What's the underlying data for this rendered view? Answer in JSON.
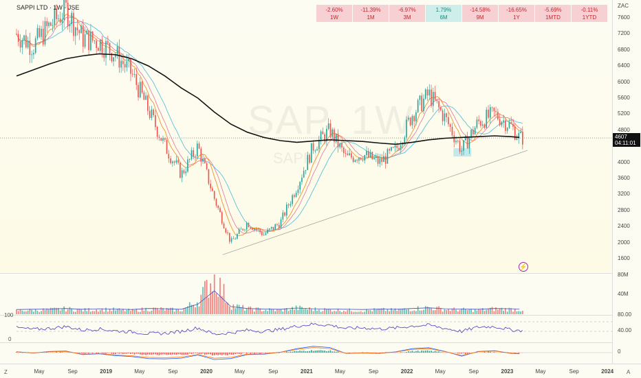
{
  "header": {
    "symbol": "SAPPI LTD · 1W · JSE"
  },
  "watermark": {
    "main": "SAP, 1W",
    "sub": "SAPPI"
  },
  "currency": "ZAC",
  "price_tag": {
    "price": "4607",
    "countdown": "04:11:01"
  },
  "performance": [
    {
      "pct": "-2.60%",
      "label": "1W",
      "dir": "neg"
    },
    {
      "pct": "-11.39%",
      "label": "1M",
      "dir": "neg"
    },
    {
      "pct": "-6.97%",
      "label": "3M",
      "dir": "neg"
    },
    {
      "pct": "1.79%",
      "label": "6M",
      "dir": "pos"
    },
    {
      "pct": "-14.58%",
      "label": "9M",
      "dir": "neg"
    },
    {
      "pct": "-16.65%",
      "label": "1Y",
      "dir": "neg"
    },
    {
      "pct": "-5.69%",
      "label": "1MTD",
      "dir": "neg"
    },
    {
      "pct": "-0.11%",
      "label": "1YTD",
      "dir": "neg"
    }
  ],
  "price_ticks": [
    "7600",
    "7200",
    "6800",
    "6400",
    "6000",
    "5600",
    "5200",
    "4800",
    "4000",
    "3600",
    "3200",
    "2800",
    "2400",
    "2000",
    "1600"
  ],
  "volume_ticks": [
    "80M",
    "40M"
  ],
  "rsi_ticks": [
    "80.00",
    "40.00"
  ],
  "rsi_left_labels": [
    "100",
    "0"
  ],
  "macd_ticks": [
    "0"
  ],
  "corner_left": "Z",
  "corner_right": "A",
  "x_ticks": [
    {
      "label": "May",
      "bold": false
    },
    {
      "label": "Sep",
      "bold": false
    },
    {
      "label": "2019",
      "bold": true
    },
    {
      "label": "May",
      "bold": false
    },
    {
      "label": "Sep",
      "bold": false
    },
    {
      "label": "2020",
      "bold": true
    },
    {
      "label": "May",
      "bold": false
    },
    {
      "label": "Sep",
      "bold": false
    },
    {
      "label": "2021",
      "bold": true
    },
    {
      "label": "May",
      "bold": false
    },
    {
      "label": "Sep",
      "bold": false
    },
    {
      "label": "2022",
      "bold": true
    },
    {
      "label": "May",
      "bold": false
    },
    {
      "label": "Sep",
      "bold": false
    },
    {
      "label": "2023",
      "bold": true
    },
    {
      "label": "May",
      "bold": false
    },
    {
      "label": "Sep",
      "bold": false
    },
    {
      "label": "2024",
      "bold": true
    }
  ],
  "chart_data": {
    "type": "line",
    "title": "SAPPI LTD · 1W · JSE",
    "ylabel": "ZAC",
    "ylim": [
      1400,
      7900
    ],
    "x": [
      "2018-03",
      "2018-05",
      "2018-07",
      "2018-09",
      "2018-11",
      "2019-01",
      "2019-03",
      "2019-05",
      "2019-07",
      "2019-09",
      "2019-11",
      "2020-01",
      "2020-03",
      "2020-05",
      "2020-07",
      "2020-09",
      "2020-11",
      "2021-01",
      "2021-03",
      "2021-05",
      "2021-07",
      "2021-09",
      "2021-11",
      "2022-01",
      "2022-03",
      "2022-05",
      "2022-07",
      "2022-09",
      "2022-11",
      "2023-01",
      "2023-03",
      "2023-04"
    ],
    "series": [
      {
        "values": [
          7200,
          6900,
          7400,
          7800,
          7100,
          7000,
          6700,
          6200,
          5300,
          4400,
          3700,
          4400,
          3100,
          2000,
          2500,
          2200,
          2500,
          3400,
          4400,
          4800,
          4100,
          4200,
          4000,
          4300,
          5200,
          5700,
          5100,
          4300,
          5000,
          5200,
          4900,
          4607
        ]
      },
      {
        "values": [
          6150,
          6300,
          6450,
          6580,
          6650,
          6700,
          6680,
          6580,
          6400,
          6150,
          5850,
          5600,
          5250,
          4950,
          4750,
          4620,
          4540,
          4500,
          4530,
          4560,
          4540,
          4520,
          4480,
          4450,
          4500,
          4560,
          4600,
          4620,
          4640,
          4660,
          4640,
          4620
        ]
      }
    ],
    "trendline": {
      "from": [
        "2020-04",
        1700
      ],
      "to": [
        "2023-05",
        4300
      ]
    },
    "volume": {
      "ylim": [
        0,
        90
      ],
      "values": [
        8,
        9,
        10,
        12,
        9,
        11,
        10,
        8,
        12,
        11,
        9,
        30,
        85,
        20,
        12,
        10,
        9,
        14,
        11,
        10,
        9,
        8,
        10,
        9,
        12,
        15,
        11,
        10,
        9,
        12,
        11,
        10
      ]
    },
    "rsi": {
      "ylim": [
        0,
        100
      ],
      "levels": [
        80,
        40
      ],
      "values": [
        55,
        48,
        52,
        60,
        45,
        50,
        42,
        38,
        30,
        32,
        40,
        55,
        28,
        34,
        45,
        40,
        48,
        62,
        70,
        66,
        52,
        55,
        50,
        54,
        62,
        66,
        52,
        40,
        58,
        60,
        46,
        44
      ]
    },
    "macd": {
      "ylim": [
        -450,
        450
      ],
      "values": [
        50,
        -20,
        60,
        80,
        -100,
        -60,
        -150,
        -200,
        -300,
        -320,
        -280,
        -120,
        -350,
        -300,
        -100,
        -80,
        20,
        200,
        320,
        260,
        -50,
        -20,
        -40,
        40,
        200,
        250,
        60,
        -180,
        60,
        100,
        -40,
        -60
      ]
    }
  },
  "colors": {
    "up": "#26a69a",
    "down": "#ef5350",
    "ma_long": "#111111",
    "ma_fast": "#f0932b",
    "ma_mid": "#e57399",
    "ma_slow": "#5bc0de",
    "rsi": "#5b4bc4",
    "vol_ma": "#3f51b5"
  }
}
